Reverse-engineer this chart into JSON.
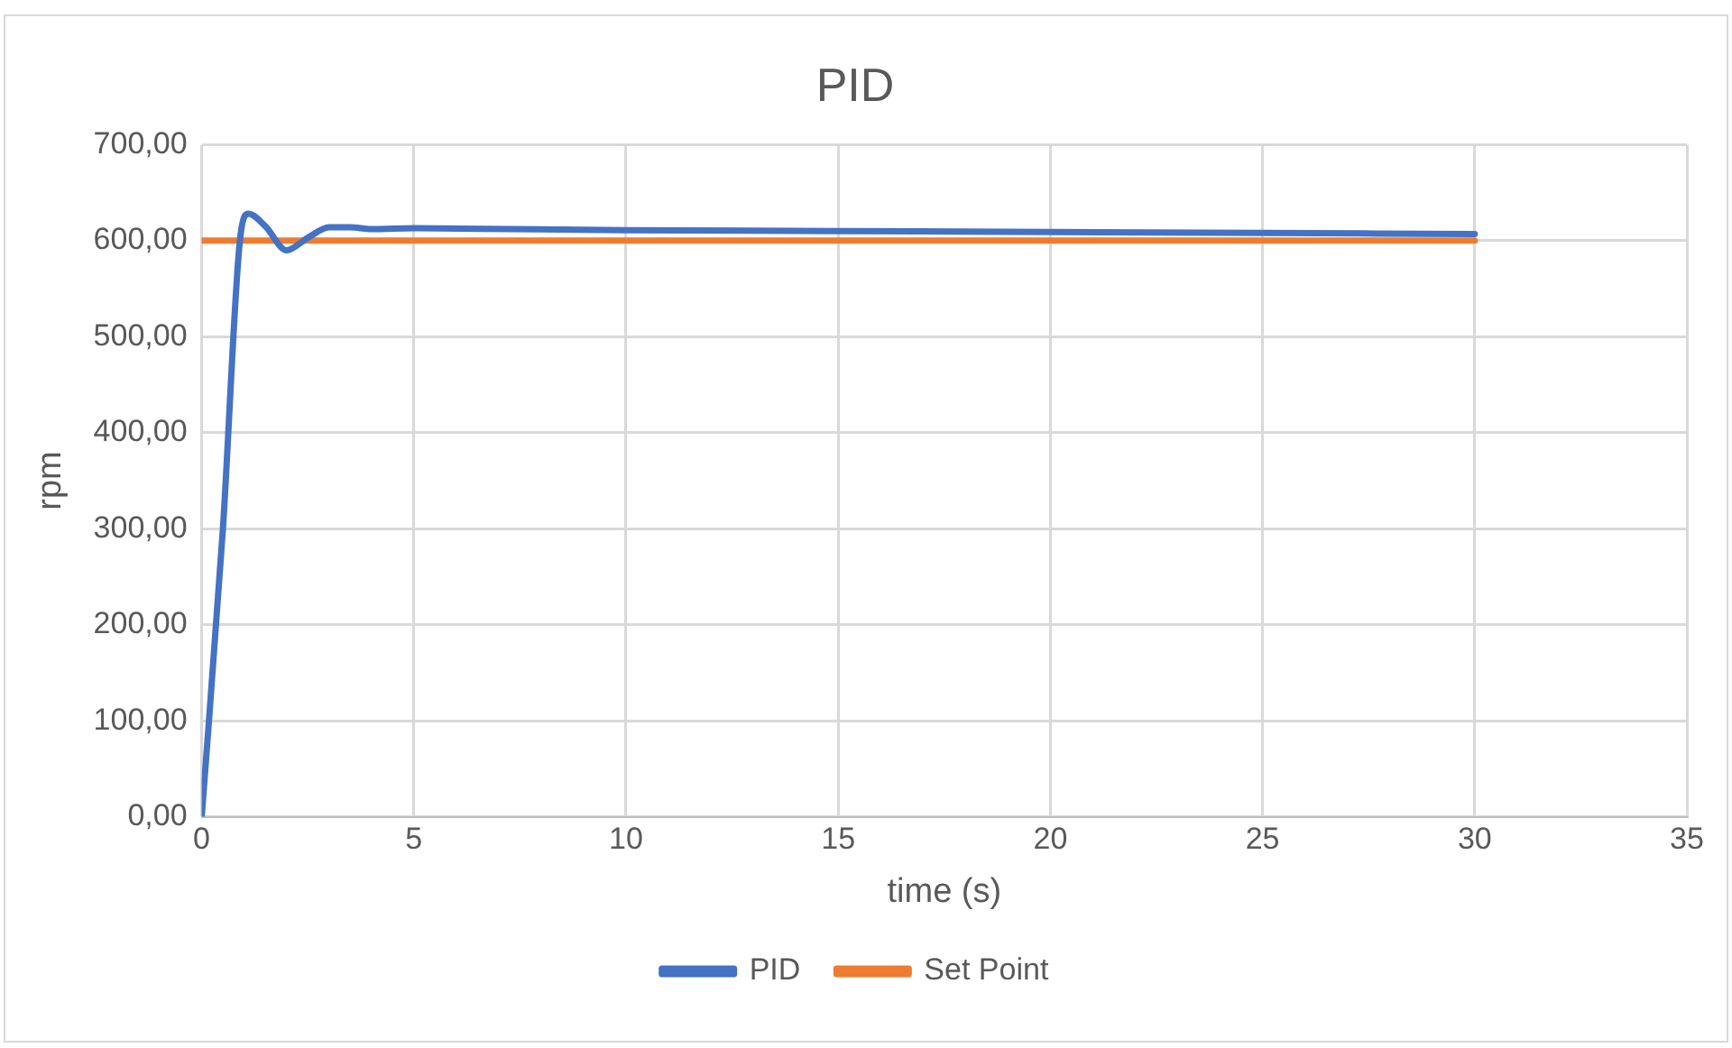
{
  "chart_data": {
    "type": "line",
    "title": "PID",
    "xlabel": "time (s)",
    "ylabel": "rpm",
    "xlim": [
      0,
      35
    ],
    "xticks": [
      0,
      5,
      10,
      15,
      20,
      25,
      30,
      35
    ],
    "ylim": [
      0,
      700
    ],
    "yticks": [
      {
        "value": 0,
        "label": "0,00"
      },
      {
        "value": 100,
        "label": "100,00"
      },
      {
        "value": 200,
        "label": "200,00"
      },
      {
        "value": 300,
        "label": "300,00"
      },
      {
        "value": 400,
        "label": "400,00"
      },
      {
        "value": 500,
        "label": "500,00"
      },
      {
        "value": 600,
        "label": "600,00"
      },
      {
        "value": 700,
        "label": "700,00"
      }
    ],
    "grid": true,
    "legend": "bottom",
    "marker": "none",
    "line_style": "solid",
    "series": [
      {
        "name": "PID",
        "color": "#4472c4",
        "x": [
          0,
          0.5,
          0.9,
          1.1,
          1.5,
          2,
          2.5,
          3,
          3.5,
          4,
          5,
          10,
          15,
          20,
          25,
          30
        ],
        "values": [
          0,
          300,
          600,
          628,
          615,
          590,
          603,
          614,
          614,
          612,
          613,
          611,
          610,
          609,
          608,
          607
        ]
      },
      {
        "name": "Set Point",
        "color": "#ed7d31",
        "x": [
          0,
          30
        ],
        "values": [
          600,
          600
        ]
      }
    ]
  }
}
